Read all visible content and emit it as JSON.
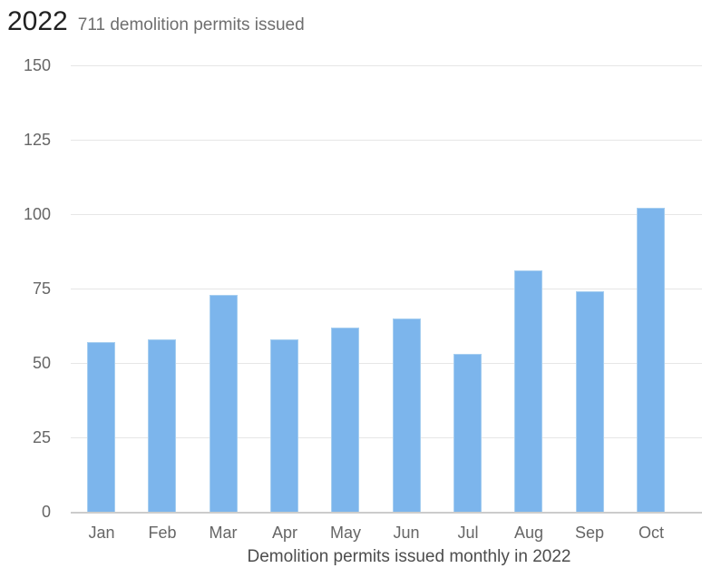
{
  "header": {
    "year": "2022",
    "subtitle": "711 demolition permits issued"
  },
  "chart_data": {
    "type": "bar",
    "title": "2022 — 711 demolition permits issued",
    "categories": [
      "Jan",
      "Feb",
      "Mar",
      "Apr",
      "May",
      "Jun",
      "Jul",
      "Aug",
      "Sep",
      "Oct"
    ],
    "values": [
      57,
      58,
      73,
      58,
      62,
      65,
      53,
      81,
      74,
      102
    ],
    "xlabel": "Demolition permits issued monthly in 2022",
    "ylabel": "",
    "ylim": [
      0,
      150
    ],
    "yticks": [
      0,
      25,
      50,
      75,
      100,
      125,
      150
    ],
    "grid": true,
    "legend": "none",
    "colors": {
      "bar_fill": "#7cb5ec",
      "bar_border": "#a6cef0",
      "gridline": "#e6e6e6",
      "axis_line": "#cccccc",
      "tick_label": "#666666",
      "axis_title": "#4d4d4d",
      "title": "#212121",
      "subtitle": "#6e6e6e",
      "background": "#ffffff"
    }
  }
}
